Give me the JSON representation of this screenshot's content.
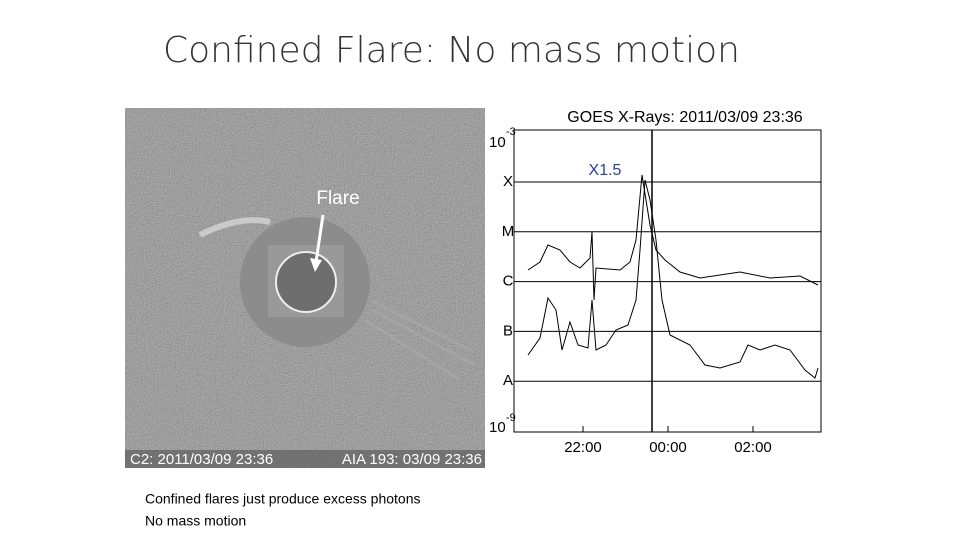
{
  "slide": {
    "title": "Confined Flare: No mass motion",
    "image": {
      "annotation": "Flare",
      "caption_left": "C2: 2011/03/09 23:36",
      "caption_right": "AIA 193: 03/09 23:36"
    },
    "plot": {
      "title": "GOES X-Rays: 2011/03/09 23:36",
      "annotation": "X1.5",
      "y_top": {
        "base": "10",
        "exp": "-3"
      },
      "y_bottom": {
        "base": "10",
        "exp": "-9"
      },
      "classes": [
        "X",
        "M",
        "C",
        "B",
        "A"
      ],
      "x_labels": [
        "22:00",
        "00:00",
        "02:00"
      ]
    },
    "notes": [
      "Confined flares just produce excess photons",
      "No mass motion"
    ]
  }
}
